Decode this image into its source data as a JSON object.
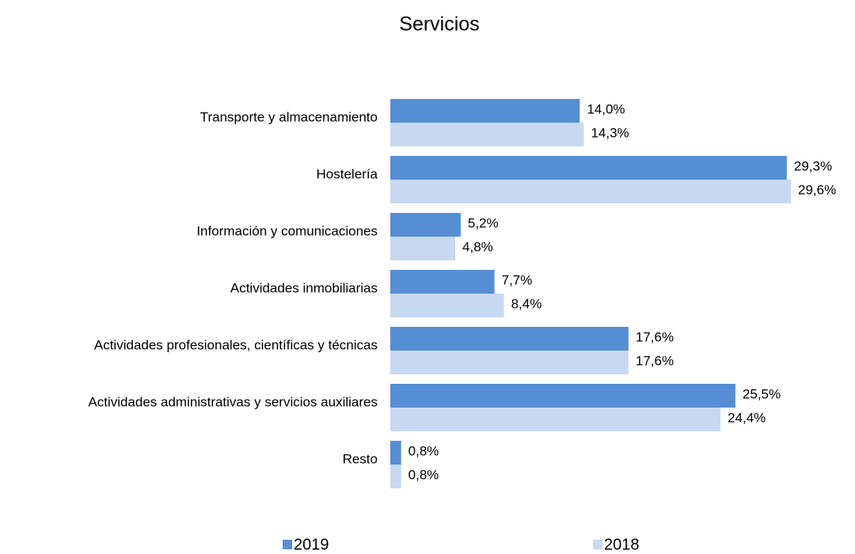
{
  "chart_data": {
    "type": "bar",
    "orientation": "horizontal",
    "title": "Servicios",
    "categories": [
      "Transporte y almacenamiento",
      "Hostelería",
      "Información y comunicaciones",
      "Actividades inmobiliarias",
      "Actividades profesionales, científicas y técnicas",
      "Actividades administrativas y servicios auxiliares",
      "Resto"
    ],
    "series": [
      {
        "name": "2019",
        "color": "#558ed5",
        "values": [
          14.0,
          29.3,
          5.2,
          7.7,
          17.6,
          25.5,
          0.8
        ],
        "value_labels": [
          "14,0%",
          "29,3%",
          "5,2%",
          "7,7%",
          "17,6%",
          "25,5%",
          "0,8%"
        ]
      },
      {
        "name": "2018",
        "color": "#c6d9f1",
        "values": [
          14.3,
          29.6,
          4.8,
          8.4,
          17.6,
          24.4,
          0.8
        ],
        "value_labels": [
          "14,3%",
          "29,6%",
          "4,8%",
          "8,4%",
          "17,6%",
          "24,4%",
          "0,8%"
        ]
      }
    ],
    "legend": "bottom"
  }
}
